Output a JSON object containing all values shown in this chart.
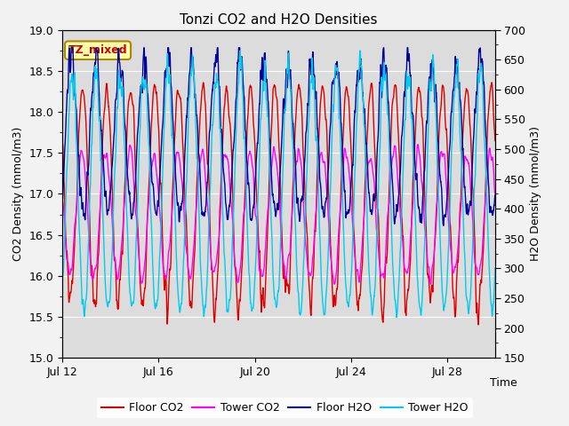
{
  "title": "Tonzi CO2 and H2O Densities",
  "xlabel": "Time",
  "ylabel_left": "CO2 Density (mmol/m3)",
  "ylabel_right": "H2O Density (mmol/m3)",
  "ylim_left": [
    15.0,
    19.0
  ],
  "ylim_right": [
    150,
    700
  ],
  "yticks_left": [
    15.0,
    15.5,
    16.0,
    16.5,
    17.0,
    17.5,
    18.0,
    18.5,
    19.0
  ],
  "yticks_right": [
    150,
    200,
    250,
    300,
    350,
    400,
    450,
    500,
    550,
    600,
    650,
    700
  ],
  "annotation_text": "TZ_mixed",
  "annotation_bg": "#ffffaa",
  "annotation_border": "#aa8800",
  "annotation_text_color": "#cc0000",
  "fig_bg": "#f2f2f2",
  "plot_bg": "#dcdcdc",
  "series": {
    "floor_co2": {
      "color": "#dd0000",
      "label": "Floor CO2",
      "lw": 1.0
    },
    "tower_co2": {
      "color": "#ff00ff",
      "label": "Tower CO2",
      "lw": 1.0
    },
    "floor_h2o": {
      "color": "#000099",
      "label": "Floor H2O",
      "lw": 1.0
    },
    "tower_h2o": {
      "color": "#00ccee",
      "label": "Tower H2O",
      "lw": 1.0
    }
  },
  "n_points": 4320,
  "seed": 7
}
